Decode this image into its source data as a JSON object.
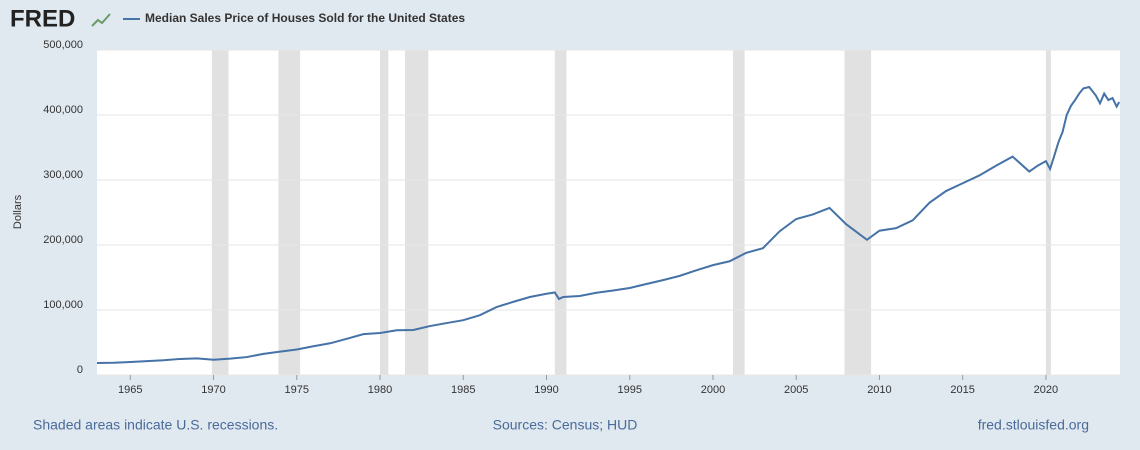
{
  "logo": "FRED",
  "chart_data": {
    "type": "line",
    "x": [
      1963,
      1964,
      1965,
      1966,
      1967,
      1968,
      1969,
      1970,
      1971,
      1972,
      1973,
      1974,
      1975,
      1976,
      1977,
      1978,
      1979,
      1980,
      1981,
      1982,
      1983,
      1984,
      1985,
      1986,
      1987,
      1988,
      1989,
      1990,
      1990.5,
      1990.75,
      1991,
      1992,
      1993,
      1994,
      1995,
      1996,
      1997,
      1998,
      1999,
      2000,
      2001,
      2002,
      2003,
      2004,
      2005,
      2006,
      2007,
      2008,
      2009.25,
      2010,
      2011,
      2012,
      2013,
      2014,
      2015,
      2016,
      2017,
      2018,
      2019,
      2019.5,
      2020,
      2020.25,
      2020.5,
      2020.75,
      2021,
      2021.25,
      2021.5,
      2021.75,
      2022,
      2022.25,
      2022.6,
      2023,
      2023.25,
      2023.5,
      2023.75,
      2024,
      2024.25,
      2024.4
    ],
    "series": [
      {
        "name": "Median Sales Price of Houses Sold for the United States",
        "color": "#4572a7",
        "values": [
          18500,
          18900,
          20000,
          21400,
          22700,
          24700,
          25600,
          23400,
          25200,
          27600,
          32500,
          35900,
          39300,
          44200,
          48800,
          55700,
          62900,
          64600,
          68900,
          69300,
          75300,
          79900,
          84300,
          92000,
          104500,
          112500,
          120000,
          125000,
          127000,
          117000,
          120000,
          121500,
          126500,
          130000,
          133900,
          140000,
          146000,
          152500,
          161000,
          169000,
          175000,
          188000,
          195000,
          221000,
          240000,
          247000,
          257000,
          232000,
          208000,
          222000,
          226000,
          238000,
          265000,
          283000,
          295000,
          307000,
          322000,
          336000,
          313000,
          322000,
          329000,
          317000,
          337000,
          358000,
          374000,
          400000,
          414000,
          423000,
          433000,
          441000,
          443000,
          430000,
          418000,
          433000,
          423000,
          426000,
          413000,
          420000
        ]
      }
    ],
    "recessions": [
      [
        1969.9,
        1970.9
      ],
      [
        1973.9,
        1975.2
      ],
      [
        1980.0,
        1980.5
      ],
      [
        1981.5,
        1982.9
      ],
      [
        1990.5,
        1991.2
      ],
      [
        2001.2,
        2001.9
      ],
      [
        2007.9,
        2009.5
      ],
      [
        2020.0,
        2020.3
      ]
    ],
    "xlim": [
      1963,
      2024.45
    ],
    "xticks": [
      1965,
      1970,
      1975,
      1980,
      1985,
      1990,
      1995,
      2000,
      2005,
      2010,
      2015,
      2020
    ],
    "ylim": [
      0,
      500000
    ],
    "yticks": [
      0,
      {
        "value": 100000,
        "label": "100,000"
      },
      {
        "value": 200000,
        "label": "200,000"
      },
      {
        "value": 300000,
        "label": "300,000"
      },
      {
        "value": 400000,
        "label": "400,000"
      },
      {
        "value": 500000,
        "label": "500,000"
      }
    ],
    "ylabel": "Dollars",
    "grid": true
  },
  "footer": {
    "note": "Shaded areas indicate U.S. recessions.",
    "source": "Sources: Census; HUD",
    "credit": "fred.stlouisfed.org"
  }
}
